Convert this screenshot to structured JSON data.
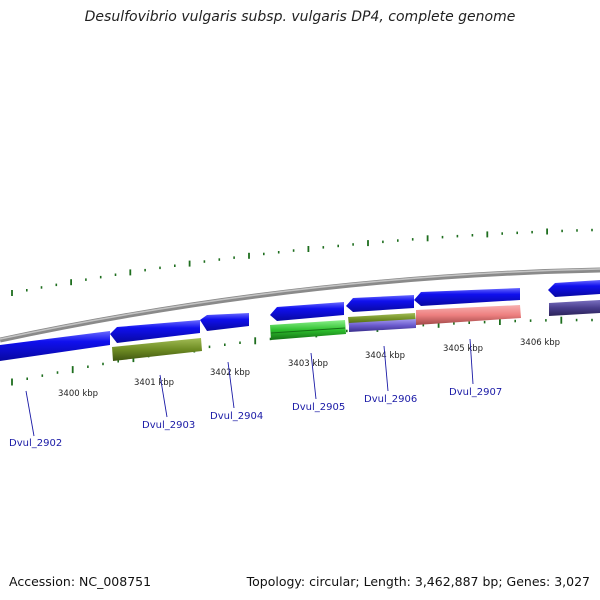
{
  "title": "Desulfovibrio vulgaris subsp. vulgaris DP4, complete genome",
  "footer": {
    "accession": "Accession: NC_008751",
    "summary": "Topology: circular; Length: 3,462,887 bp; Genes: 3,027"
  },
  "scale_labels": [
    "3400 kbp",
    "3401 kbp",
    "3402 kbp",
    "3403 kbp",
    "3404 kbp",
    "3405 kbp",
    "3406 kbp"
  ],
  "gene_labels": [
    "Dvul_2902",
    "Dvul_2903",
    "Dvul_2904",
    "Dvul_2905",
    "Dvul_2906",
    "Dvul_2907"
  ],
  "colors": {
    "backbone": "#8a8a8a",
    "cds": "#1212e6",
    "feature_olive": "#6e8c23",
    "feature_green": "#2ec02e",
    "feature_purple": "#6a5acd",
    "feature_pink": "#ee8080",
    "feature_navy": "#483d8b",
    "tick": "#1e6e1e",
    "label": "#1a1aa6"
  }
}
